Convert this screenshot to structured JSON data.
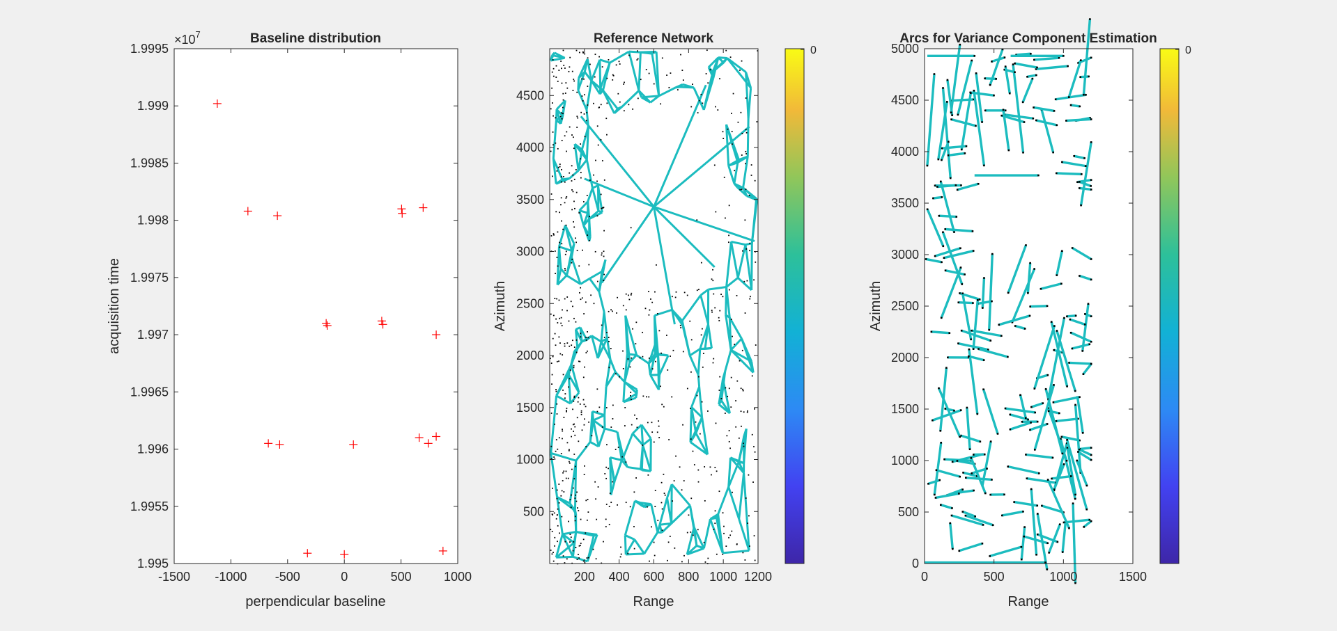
{
  "chart_data": [
    {
      "type": "scatter",
      "title": "Baseline distribution",
      "xlabel": "perpendicular baseline",
      "ylabel": "acquisition time",
      "y_exponent_label": "×10",
      "y_exponent_power": "7",
      "xlim": [
        -1500,
        1000
      ],
      "ylim": [
        19950000,
        19995000
      ],
      "xticks": [
        "-1500",
        "-1000",
        "-500",
        "0",
        "500",
        "1000"
      ],
      "yticks": [
        "1.995",
        "1.9955",
        "1.996",
        "1.9965",
        "1.997",
        "1.9975",
        "1.998",
        "1.9985",
        "1.999",
        "1.9995"
      ],
      "marker_color": "#ff0000",
      "series": [
        {
          "marker": "+",
          "points": [
            [
              -1120,
              19990200
            ],
            [
              -850,
              19980800
            ],
            [
              -590,
              19980400
            ],
            [
              505,
              19981000
            ],
            [
              510,
              19980600
            ],
            [
              695,
              19981100
            ],
            [
              -160,
              19971000
            ],
            [
              -150,
              19970800
            ],
            [
              330,
              19971200
            ],
            [
              340,
              19970900
            ],
            [
              810,
              19970000
            ],
            [
              -670,
              19960500
            ],
            [
              -570,
              19960400
            ],
            [
              80,
              19960400
            ],
            [
              660,
              19961000
            ],
            [
              740,
              19960500
            ],
            [
              810,
              19961100
            ],
            [
              -325,
              19950900
            ],
            [
              0,
              19950800
            ],
            [
              870,
              19951100
            ]
          ]
        }
      ]
    },
    {
      "type": "scatter",
      "title": "Reference Network",
      "xlabel": "Range",
      "ylabel": "Azimuth",
      "xlim": [
        0,
        1200
      ],
      "ylim": [
        0,
        4950
      ],
      "xticks": [
        "200",
        "400",
        "600",
        "800",
        "1000",
        "1200"
      ],
      "yticks": [
        "500",
        "1000",
        "1500",
        "2000",
        "2500",
        "3000",
        "3500",
        "4000",
        "4500"
      ],
      "edge_color": "#1cbcbf",
      "point_color": "#000000",
      "colorbar": {
        "tick_label": "0",
        "colormap": "parula"
      }
    },
    {
      "type": "scatter",
      "title": "Arcs for Variance Component Estimation",
      "xlabel": "Range",
      "ylabel": "Azimuth",
      "xlim": [
        0,
        1500
      ],
      "ylim": [
        0,
        5000
      ],
      "xticks": [
        "0",
        "500",
        "1000",
        "1500"
      ],
      "yticks": [
        "0",
        "500",
        "1000",
        "1500",
        "2000",
        "2500",
        "3000",
        "3500",
        "4000",
        "4500",
        "5000"
      ],
      "edge_color": "#1cbcbf",
      "point_color": "#000000",
      "colorbar": {
        "tick_label": "0",
        "colormap": "parula"
      }
    }
  ]
}
